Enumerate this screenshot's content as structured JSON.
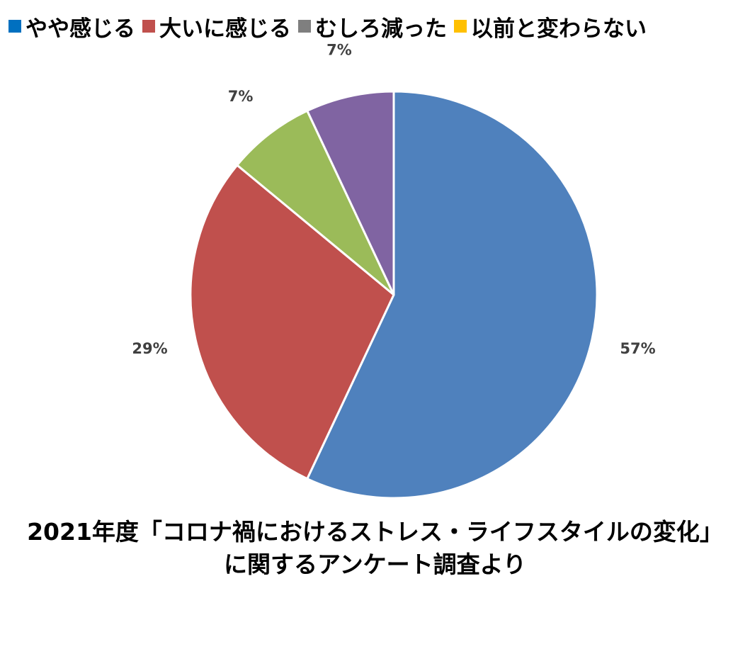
{
  "chart_data": {
    "type": "pie",
    "legend": {
      "placement": "top",
      "entries": [
        {
          "label": "やや感じる",
          "color": "#0070C0"
        },
        {
          "label": "大いに感じる",
          "color": "#C0504D"
        },
        {
          "label": "むしろ減った",
          "color": "#7F7F7F"
        },
        {
          "label": "以前と変わらない",
          "color": "#FFC000"
        }
      ]
    },
    "slices": [
      {
        "value": 57,
        "label": "57%",
        "color": "#4F81BD"
      },
      {
        "value": 29,
        "label": "29%",
        "color": "#C0504D"
      },
      {
        "value": 7,
        "label": "7%",
        "color": "#9BBB59"
      },
      {
        "value": 7,
        "label": "7%",
        "color": "#8064A2"
      }
    ],
    "caption": [
      "2021年度「コロナ禍におけるストレス・ライフスタイルの変化」",
      "に関するアンケート調査より"
    ]
  }
}
